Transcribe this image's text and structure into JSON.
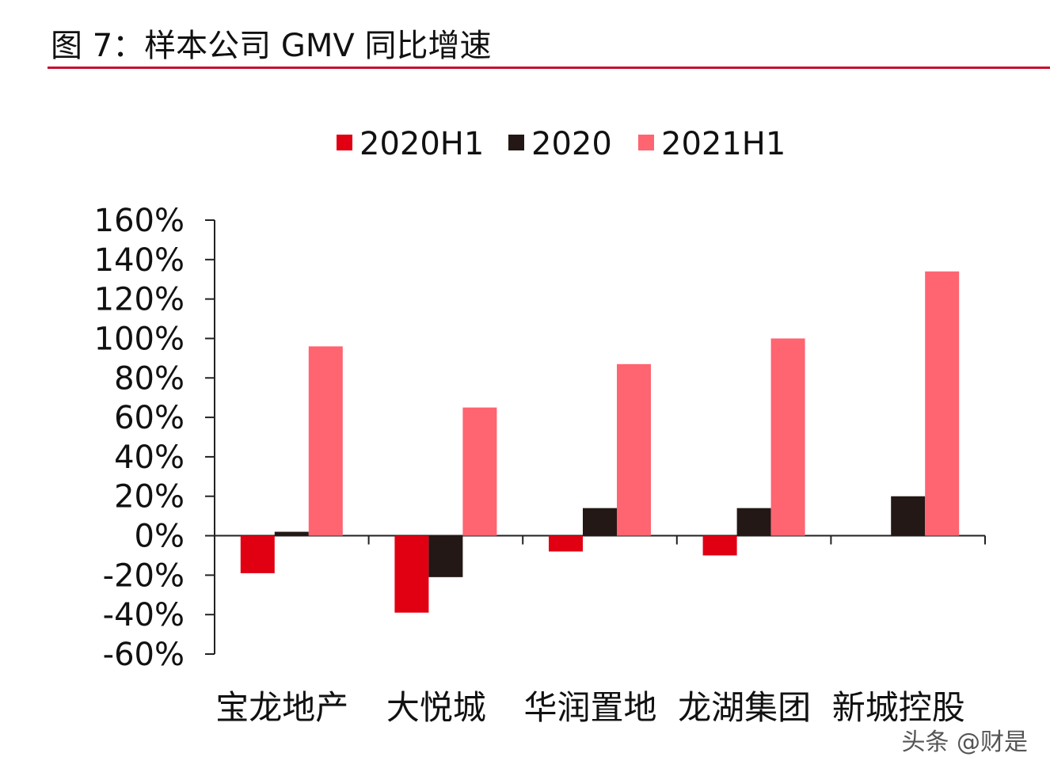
{
  "page": {
    "title": "图 7：样本公司 GMV 同比增速",
    "watermark": "头条 @财是",
    "accent_color": "#c8102e"
  },
  "chart_data": {
    "type": "bar",
    "title": "",
    "xlabel": "",
    "ylabel": "",
    "categories": [
      "宝龙地产",
      "大悦城",
      "华润置地",
      "龙湖集团",
      "新城控股"
    ],
    "series": [
      {
        "name": "2020H1",
        "color": "#e00012",
        "values": [
          -19,
          -39,
          -8,
          -10,
          null
        ]
      },
      {
        "name": "2020",
        "color": "#231815",
        "values": [
          2,
          -21,
          14,
          14,
          20
        ]
      },
      {
        "name": "2021H1",
        "color": "#ff6471",
        "values": [
          96,
          65,
          87,
          100,
          134
        ]
      }
    ],
    "ylim": [
      -60,
      160
    ],
    "yticks": [
      160,
      140,
      120,
      100,
      80,
      60,
      40,
      20,
      0,
      -20,
      -40,
      -60
    ],
    "ytick_format": "percent",
    "grid": false,
    "legend_position": "top"
  }
}
